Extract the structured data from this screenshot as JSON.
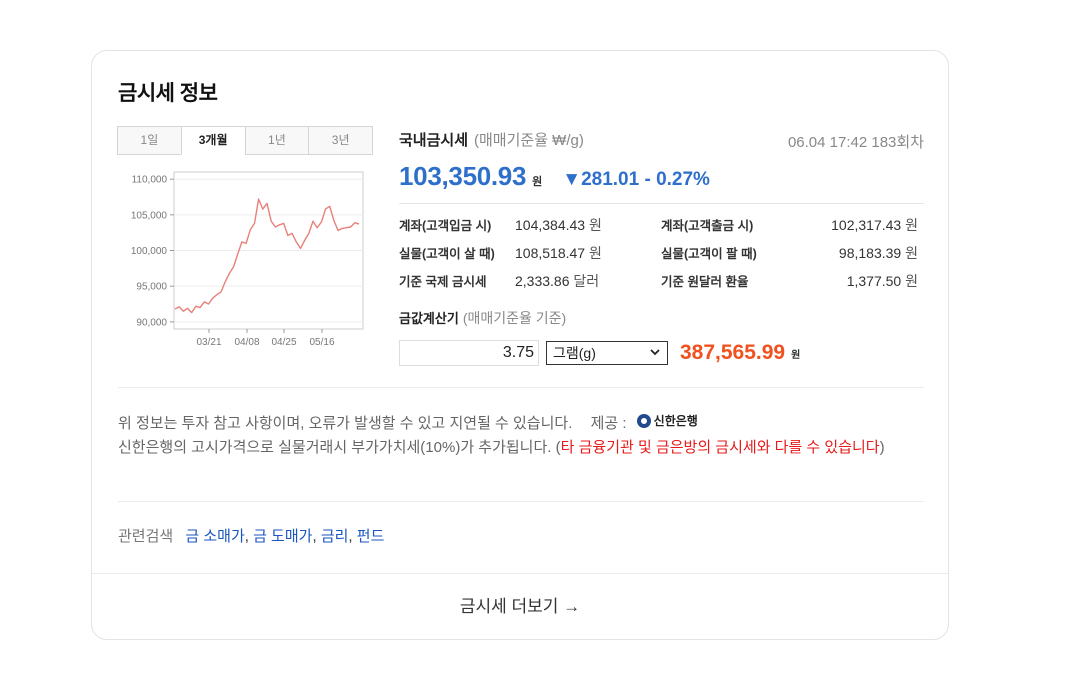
{
  "title": "금시세 정보",
  "tabs": [
    "1일",
    "3개월",
    "1년",
    "3년"
  ],
  "active_tab": "3개월",
  "chart_data": {
    "type": "line",
    "x_tick_labels": [
      "03/21",
      "04/08",
      "04/25",
      "05/16"
    ],
    "y_ticks": [
      90000,
      95000,
      100000,
      105000,
      110000
    ],
    "y_tick_labels": [
      "90,000",
      "95,000",
      "100,000",
      "105,000",
      "110,000"
    ],
    "ylim": [
      89000,
      111000
    ],
    "series": [
      {
        "color": "#e8807a",
        "values": [
          91800,
          92100,
          91500,
          91900,
          91300,
          92200,
          92000,
          92800,
          92500,
          93300,
          93800,
          94200,
          95600,
          96800,
          97700,
          99500,
          101200,
          101000,
          102900,
          103800,
          107200,
          105800,
          106600,
          104100,
          103300,
          103600,
          103800,
          102100,
          102400,
          101200,
          100300,
          101400,
          102400,
          104100,
          103200,
          104000,
          105800,
          106200,
          104200,
          102800,
          103100,
          103200,
          103300,
          103900,
          103700
        ]
      }
    ],
    "grid": true
  },
  "info": {
    "label": "국내금시세",
    "unit": "(매매기준율 ₩/g)",
    "timestamp": "06.04 17:42 183회차",
    "price": "103,350.93",
    "price_unit": "원",
    "change": "▼281.01 - 0.27%",
    "rows": [
      {
        "label": "계좌(고객입금 시)",
        "value": "104,384.43",
        "unit": "원",
        "label2": "계좌(고객출금 시)",
        "value2": "102,317.43",
        "unit2": "원"
      },
      {
        "label": "실물(고객이 살 때)",
        "value": "108,518.47",
        "unit": "원",
        "label2": "실물(고객이 팔 때)",
        "value2": "98,183.39",
        "unit2": "원"
      },
      {
        "label": "기준 국제 금시세",
        "value": "2,333.86",
        "unit": "달러",
        "label2": "기준 원달러 환율",
        "value2": "1,377.50",
        "unit2": "원"
      }
    ]
  },
  "calculator": {
    "title": "금값계산기",
    "subtitle": "(매매기준율 기준)",
    "amount": "3.75",
    "unit_select": "그램(g)",
    "result": "387,565.99",
    "result_unit": "원"
  },
  "notice": {
    "line1": "위 정보는 투자 참고 사항이며, 오류가 발생할 수 있고 지연될 수 있습니다.",
    "provider_label": "제공 :",
    "provider": "신한은행",
    "line2_a": "신한은행의 고시가격으로 실물거래시 부가가치세(10%)가 추가됩니다. (",
    "line2_red": "타 금융기관 및 금은방의 금시세와 다를 수 있습니다",
    "line2_b": ")"
  },
  "related": {
    "label": "관련검색",
    "links": [
      "금 소매가",
      "금 도매가",
      "금리",
      "펀드"
    ]
  },
  "more": "금시세 더보기 →"
}
